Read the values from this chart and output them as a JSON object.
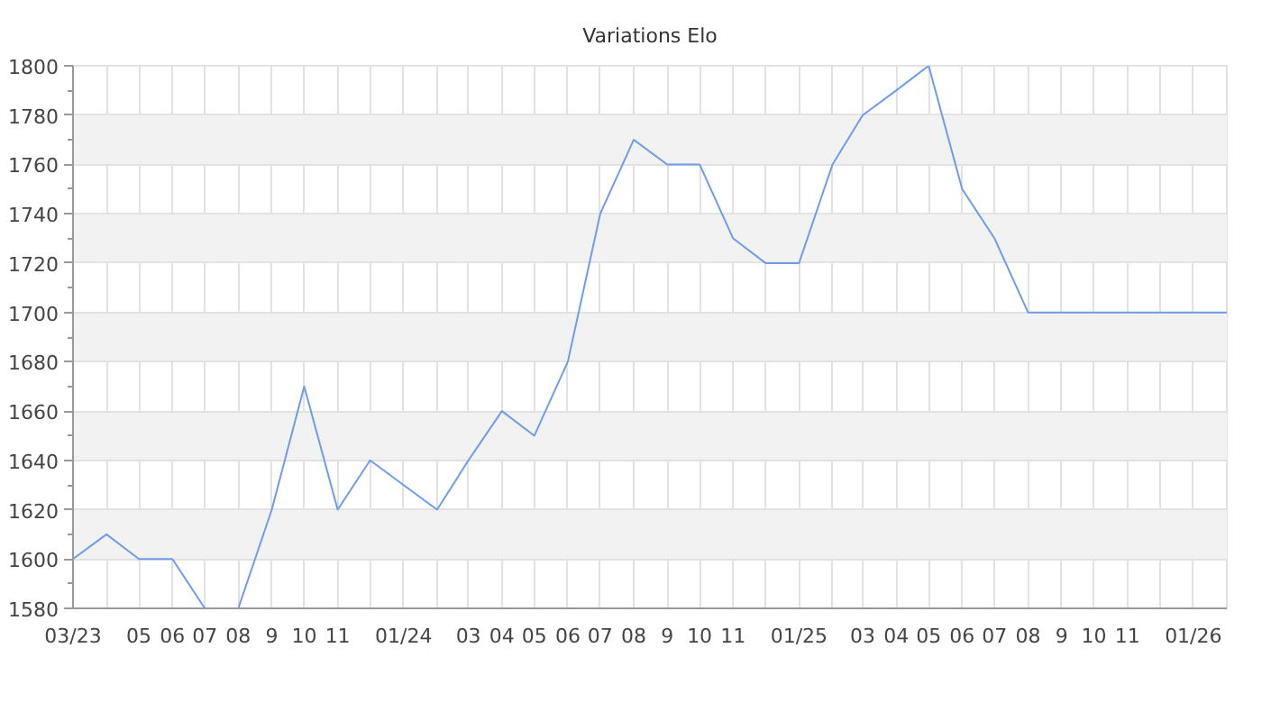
{
  "chart_data": {
    "type": "line",
    "title": "Variations Elo",
    "x": [
      "2023-03",
      "2023-04",
      "2023-05",
      "2023-06",
      "2023-07",
      "2023-08",
      "2023-09",
      "2023-10",
      "2023-11",
      "2023-12",
      "2024-01",
      "2024-02",
      "2024-03",
      "2024-04",
      "2024-05",
      "2024-06",
      "2024-07",
      "2024-08",
      "2024-09",
      "2024-10",
      "2024-11",
      "2024-12",
      "2025-01",
      "2025-02",
      "2025-03",
      "2025-04",
      "2025-05",
      "2025-06",
      "2025-07",
      "2025-08",
      "2025-09",
      "2025-10",
      "2025-11",
      "2025-12",
      "2026-01",
      "2026-02"
    ],
    "series": [
      {
        "color": "#6f9bea",
        "values": [
          1600,
          1610,
          1600,
          1600,
          1580,
          1580,
          1620,
          1670,
          1620,
          1640,
          1630,
          1620,
          1640,
          1660,
          1650,
          1680,
          1740,
          1770,
          1760,
          1760,
          1730,
          1720,
          1720,
          1760,
          1780,
          1790,
          1800,
          1750,
          1730,
          1700,
          1700,
          1700,
          1700,
          1700,
          1700,
          1700
        ]
      }
    ],
    "xlim": [
      "2023-03",
      "2026-02"
    ],
    "ylim": [
      1580,
      1800
    ],
    "xticks": [
      {
        "value": "2023-03",
        "label": "03/23"
      },
      {
        "value": "2023-04",
        "label": null
      },
      {
        "value": "2023-05",
        "label": "05"
      },
      {
        "value": "2023-06",
        "label": "06"
      },
      {
        "value": "2023-07",
        "label": "07"
      },
      {
        "value": "2023-08",
        "label": "08"
      },
      {
        "value": "2023-09",
        "label": "9"
      },
      {
        "value": "2023-10",
        "label": "10"
      },
      {
        "value": "2023-11",
        "label": "11"
      },
      {
        "value": "2023-12",
        "label": null
      },
      {
        "value": "2024-01",
        "label": "01/24"
      },
      {
        "value": "2024-02",
        "label": null
      },
      {
        "value": "2024-03",
        "label": "03"
      },
      {
        "value": "2024-04",
        "label": "04"
      },
      {
        "value": "2024-05",
        "label": "05"
      },
      {
        "value": "2024-06",
        "label": "06"
      },
      {
        "value": "2024-07",
        "label": "07"
      },
      {
        "value": "2024-08",
        "label": "08"
      },
      {
        "value": "2024-09",
        "label": "9"
      },
      {
        "value": "2024-10",
        "label": "10"
      },
      {
        "value": "2024-11",
        "label": "11"
      },
      {
        "value": "2024-12",
        "label": null
      },
      {
        "value": "2025-01",
        "label": "01/25"
      },
      {
        "value": "2025-02",
        "label": null
      },
      {
        "value": "2025-03",
        "label": "03"
      },
      {
        "value": "2025-04",
        "label": "04"
      },
      {
        "value": "2025-05",
        "label": "05"
      },
      {
        "value": "2025-06",
        "label": "06"
      },
      {
        "value": "2025-07",
        "label": "07"
      },
      {
        "value": "2025-08",
        "label": "08"
      },
      {
        "value": "2025-09",
        "label": "9"
      },
      {
        "value": "2025-10",
        "label": "10"
      },
      {
        "value": "2025-11",
        "label": "11"
      },
      {
        "value": "2025-12",
        "label": null
      },
      {
        "value": "2026-01",
        "label": "01/26"
      }
    ],
    "yticks": [
      1580,
      {
        "value": 1590,
        "label": null
      },
      1600,
      {
        "value": 1610,
        "label": null
      },
      1620,
      {
        "value": 1630,
        "label": null
      },
      1640,
      {
        "value": 1650,
        "label": null
      },
      1660,
      {
        "value": 1670,
        "label": null
      },
      1680,
      {
        "value": 1690,
        "label": null
      },
      1700,
      {
        "value": 1710,
        "label": null
      },
      1720,
      {
        "value": 1730,
        "label": null
      },
      1740,
      {
        "value": 1750,
        "label": null
      },
      1760,
      {
        "value": 1770,
        "label": null
      },
      1780,
      {
        "value": 1790,
        "label": null
      },
      1800
    ],
    "grid": true
  }
}
